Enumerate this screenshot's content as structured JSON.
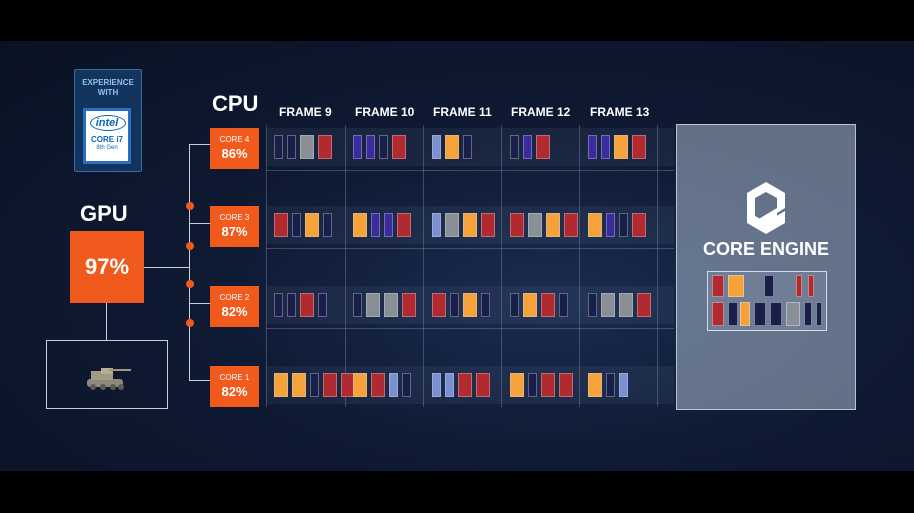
{
  "badge": {
    "line1": "EXPERIENCE",
    "line2": "WITH",
    "brand": "intel",
    "product": "CORE i7",
    "gen": "8th Gen"
  },
  "gpu": {
    "title": "GPU",
    "percent": "97%"
  },
  "cpu": {
    "title": "CPU",
    "cores": [
      {
        "label": "CORE 4",
        "percent": "86%"
      },
      {
        "label": "CORE 3",
        "percent": "87%"
      },
      {
        "label": "CORE 2",
        "percent": "82%"
      },
      {
        "label": "CORE 1",
        "percent": "82%"
      }
    ]
  },
  "frames": [
    "FRAME 9",
    "FRAME 10",
    "FRAME 11",
    "FRAME 12",
    "FRAME 13"
  ],
  "engine": {
    "title": "CORE ENGINE"
  },
  "colors": {
    "orange": "#f05a1c",
    "red": "#b02a30",
    "amber": "#f5a23a",
    "navy": "#1a1f4a",
    "purple": "#3b2b9c",
    "blue": "#7a90d0",
    "gray": "#8a8f95"
  },
  "icons": {
    "gpu_preview": "tank-icon",
    "engine_logo": "core-engine-logo-icon"
  }
}
